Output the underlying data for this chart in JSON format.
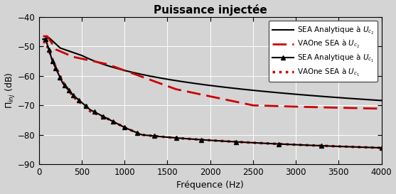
{
  "title": "Puissance injectée",
  "xlabel": "Fréquence (Hz)",
  "ylabel": "$\\Pi_{inj}$ (dB)",
  "xlim": [
    0,
    4000
  ],
  "ylim": [
    -90,
    -40
  ],
  "yticks": [
    -90,
    -80,
    -70,
    -60,
    -50,
    -40
  ],
  "xticks": [
    0,
    500,
    1000,
    1500,
    2000,
    2500,
    3000,
    3500,
    4000
  ],
  "bg_color": "#d4d4d4",
  "grid_color": "#ffffff",
  "line1_color": "#000000",
  "line2_color": "#cc0000",
  "line3_color": "#000000",
  "line4_color": "#cc0000"
}
